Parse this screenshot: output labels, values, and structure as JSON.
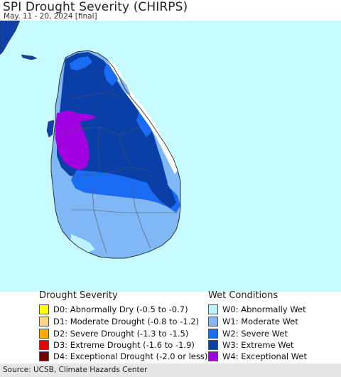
{
  "header": {
    "title": "SPI Drought Severity (CHIRPS)",
    "subtitle": "May. 11 - 20, 2024 [final]"
  },
  "legend": {
    "drought": {
      "title": "Drought Severity",
      "items": [
        {
          "label": "D0: Abnormally Dry (-0.5 to -0.7)",
          "color": "#ffff00"
        },
        {
          "label": "D1: Moderate Drought (-0.8 to -1.2)",
          "color": "#fcd37f"
        },
        {
          "label": "D2: Severe Drought (-1.3 to -1.5)",
          "color": "#ffaa00"
        },
        {
          "label": "D3: Extreme Drought (-1.6 to -1.9)",
          "color": "#e60000"
        },
        {
          "label": "D4: Exceptional Drought (-2.0 or less)",
          "color": "#730000"
        }
      ]
    },
    "wet": {
      "title": "Wet Conditions",
      "items": [
        {
          "label": "W0: Abnormally Wet",
          "color": "#bdf3ff"
        },
        {
          "label": "W1: Moderate Wet",
          "color": "#7fb8f4"
        },
        {
          "label": "W2: Severe Wet",
          "color": "#1a6cf5"
        },
        {
          "label": "W3: Extreme Wet",
          "color": "#0a3fa8"
        },
        {
          "label": "W4: Exceptional Wet",
          "color": "#a100e0"
        }
      ]
    }
  },
  "map_colors": {
    "ocean": "#c6fcff",
    "land_neutral": "#ffffff",
    "india": "#1040a8"
  },
  "footer": {
    "source": "Source: UCSB, Climate Hazards Center"
  }
}
